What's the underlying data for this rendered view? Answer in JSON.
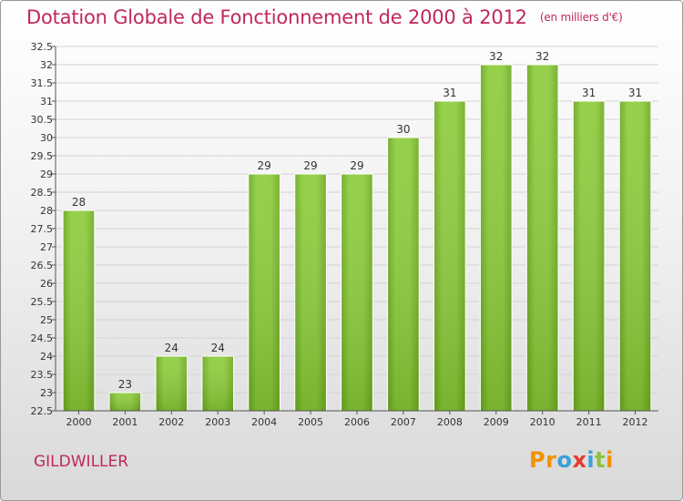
{
  "chart_data": {
    "type": "bar",
    "title": "Dotation Globale de Fonctionnement de 2000 à 2012",
    "subtitle": "(en milliers d'€)",
    "categories": [
      "2000",
      "2001",
      "2002",
      "2003",
      "2004",
      "2005",
      "2006",
      "2007",
      "2008",
      "2009",
      "2010",
      "2011",
      "2012"
    ],
    "values": [
      28,
      23,
      24,
      24,
      29,
      29,
      29,
      30,
      31,
      32,
      32,
      31,
      31
    ],
    "ylim": [
      22.5,
      32.5
    ],
    "yticks": [
      "22.5",
      "23",
      "23.5",
      "24",
      "24.5",
      "25",
      "25.5",
      "26",
      "26.5",
      "27",
      "27.5",
      "28",
      "28.5",
      "29",
      "29.5",
      "30",
      "30.5",
      "31",
      "31.5",
      "32",
      "32.5"
    ],
    "xlabel": "",
    "ylabel": "",
    "grid": "horizontal",
    "bar_color": "#7cbc2e"
  },
  "footer": {
    "city": "GILDWILLER",
    "logo_parts": [
      "Pr",
      "o",
      "x",
      "i",
      "t",
      "i"
    ]
  }
}
